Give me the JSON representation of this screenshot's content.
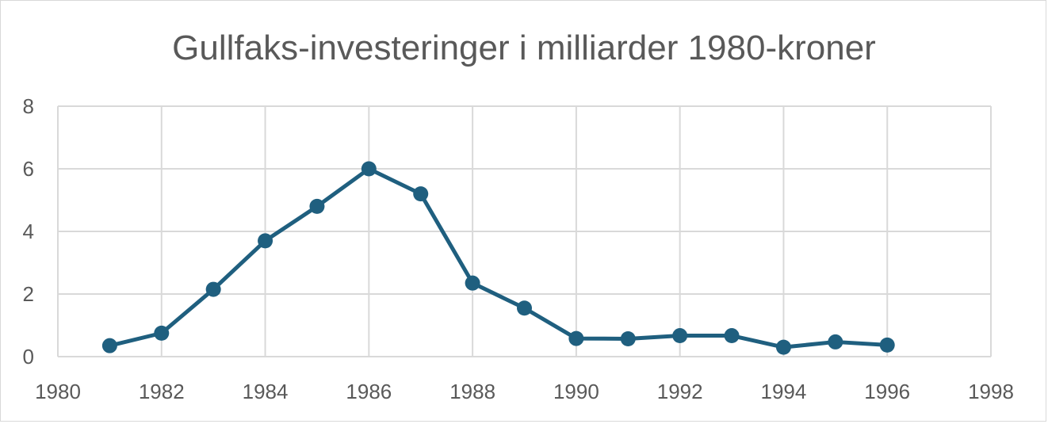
{
  "chart_data": {
    "type": "scatter",
    "title": "Gullfaks-investeringer i milliarder 1980-kroner",
    "xlabel": "",
    "ylabel": "",
    "xlim": [
      1980,
      1998
    ],
    "ylim": [
      0,
      8
    ],
    "x_ticks": [
      1980,
      1982,
      1984,
      1986,
      1988,
      1990,
      1992,
      1994,
      1996,
      1998
    ],
    "y_ticks": [
      0,
      2,
      4,
      6,
      8
    ],
    "grid": true,
    "legend": "none",
    "line_color": "#1f5f7f",
    "grid_color": "#d9d9d9",
    "series": [
      {
        "x": [
          1981,
          1982,
          1983,
          1984,
          1985,
          1986,
          1987,
          1988,
          1989,
          1990,
          1991,
          1992,
          1993,
          1994,
          1995,
          1996
        ],
        "y": [
          0.35,
          0.75,
          2.15,
          3.7,
          4.8,
          6.0,
          5.2,
          2.35,
          1.55,
          0.58,
          0.57,
          0.67,
          0.67,
          0.3,
          0.47,
          0.37
        ]
      }
    ]
  }
}
